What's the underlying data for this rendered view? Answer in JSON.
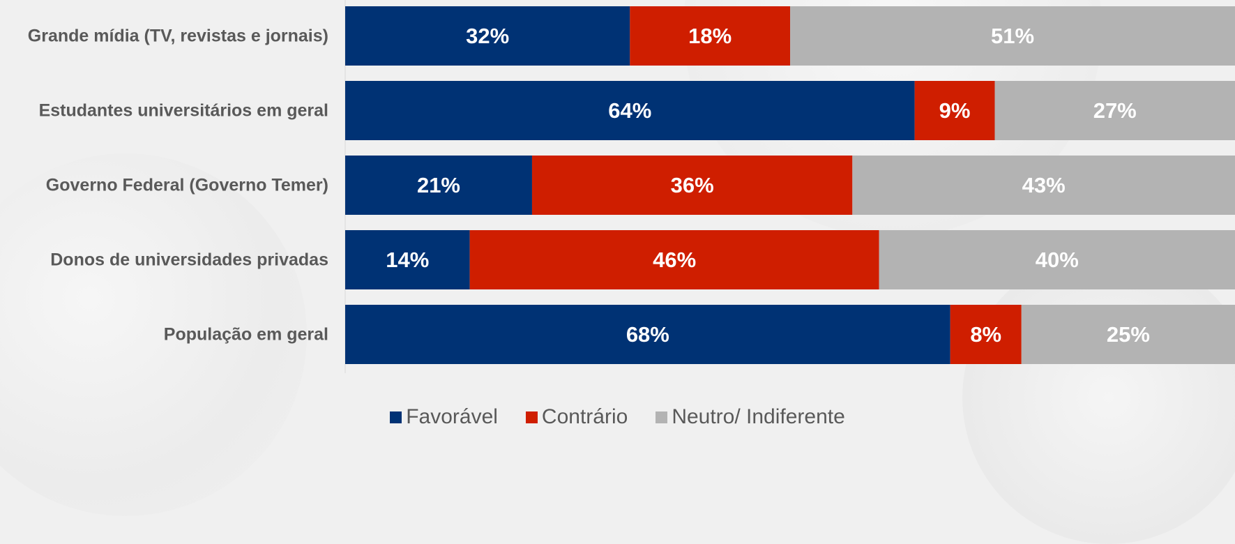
{
  "chart_data": {
    "type": "bar",
    "orientation": "horizontal",
    "stacked": true,
    "categories": [
      "Grande mídia (TV, revistas e jornais)",
      "Estudantes universitários em geral",
      "Governo Federal (Governo Temer)",
      "Donos de universidades privadas",
      "População em geral"
    ],
    "series": [
      {
        "name": "Favorável",
        "color": "#003274",
        "values": [
          32,
          64,
          21,
          14,
          68
        ],
        "labels": [
          "32%",
          "64%",
          "21%",
          "14%",
          "68%"
        ]
      },
      {
        "name": "Contrário",
        "color": "#cf1e00",
        "values": [
          18,
          9,
          36,
          46,
          8
        ],
        "labels": [
          "18%",
          "9%",
          "36%",
          "46%",
          "8%"
        ]
      },
      {
        "name": "Neutro/ Indiferente",
        "color": "#b3b3b3",
        "values": [
          51,
          27,
          43,
          40,
          25
        ],
        "labels": [
          "51%",
          "27%",
          "43%",
          "40%",
          "25%"
        ]
      }
    ],
    "xlim": [
      0,
      100
    ],
    "legend_position": "bottom-center",
    "grid": false
  }
}
